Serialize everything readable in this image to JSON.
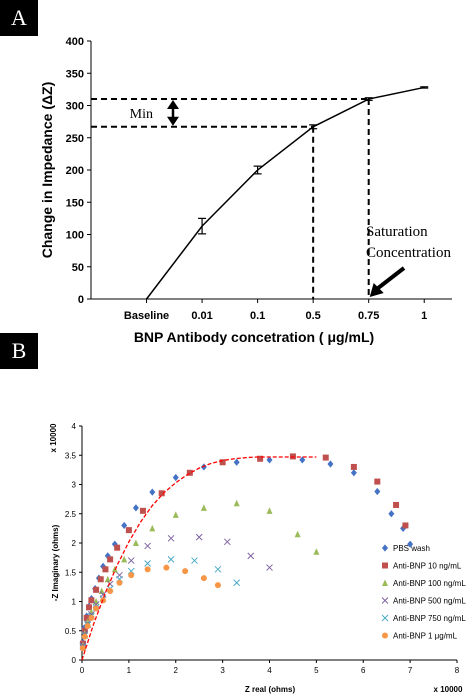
{
  "panel_labels": [
    "A",
    "B"
  ],
  "chart_data": [
    {
      "type": "line",
      "panel": "A",
      "categories": [
        "Baseline",
        "0.01",
        "0.1",
        "0.5",
        "0.75",
        "1"
      ],
      "series": [
        {
          "values": [
            0,
            113,
            200,
            267,
            310,
            328
          ],
          "errors": [
            0,
            12,
            6,
            3,
            2,
            1
          ]
        }
      ],
      "xlabel": "BNP Antibody concetration ( μg/mL)",
      "ylabel": "Change in Impedance (ΔZ)",
      "yticks": [
        0,
        50,
        100,
        150,
        200,
        250,
        300,
        350,
        400
      ],
      "ylim": [
        0,
        400
      ],
      "grid": false,
      "annotations": {
        "min_label": "Min",
        "saturation_line1": "Saturation",
        "saturation_line2": "Concentration"
      }
    },
    {
      "type": "scatter",
      "panel": "B",
      "xlabel": "Z real (ohms)",
      "ylabel": "-Z Imaginary (ohms)",
      "x_multiplier": "x 10000",
      "y_multiplier": "x 10000",
      "xlim": [
        0,
        8
      ],
      "ylim": [
        0,
        4
      ],
      "xticks": [
        "0",
        "1",
        "2",
        "3",
        "4",
        "5",
        "6",
        "7",
        "8"
      ],
      "yticks": [
        "0",
        "0.5",
        "1",
        "1.5",
        "2",
        "2.5",
        "3",
        "3.5",
        "4"
      ],
      "grid": false,
      "legend_position": "right",
      "series": [
        {
          "name": "PBS wash",
          "color": "#4472C4",
          "marker": "diamond",
          "x": [
            0.02,
            0.05,
            0.1,
            0.15,
            0.2,
            0.28,
            0.36,
            0.45,
            0.55,
            0.7,
            0.9,
            1.15,
            1.5,
            2.0,
            2.6,
            3.3,
            4.0,
            4.7,
            5.3,
            5.8,
            6.3,
            6.6,
            6.85,
            7.0
          ],
          "y": [
            0.3,
            0.55,
            0.75,
            0.92,
            1.05,
            1.22,
            1.4,
            1.6,
            1.78,
            1.98,
            2.3,
            2.6,
            2.87,
            3.12,
            3.3,
            3.38,
            3.42,
            3.42,
            3.35,
            3.2,
            2.88,
            2.5,
            2.25,
            1.98
          ]
        },
        {
          "name": "Anti-BNP 10 ng/mL",
          "color": "#C0504D",
          "marker": "square",
          "x": [
            0.02,
            0.06,
            0.1,
            0.15,
            0.2,
            0.3,
            0.4,
            0.5,
            0.6,
            0.75,
            1.0,
            1.3,
            1.7,
            2.3,
            3.0,
            3.8,
            4.5,
            5.2,
            5.8,
            6.3,
            6.7,
            6.9
          ],
          "y": [
            0.28,
            0.5,
            0.72,
            0.9,
            1.02,
            1.2,
            1.38,
            1.55,
            1.72,
            1.92,
            2.22,
            2.55,
            2.85,
            3.2,
            3.38,
            3.44,
            3.48,
            3.46,
            3.3,
            3.05,
            2.65,
            2.3
          ]
        },
        {
          "name": "Anti-BNP 100 ng/mL",
          "color": "#9BBB59",
          "marker": "triangle",
          "x": [
            0.02,
            0.06,
            0.12,
            0.2,
            0.3,
            0.42,
            0.55,
            0.7,
            0.9,
            1.15,
            1.5,
            2.0,
            2.6,
            3.3,
            4.0,
            4.6,
            5.0
          ],
          "y": [
            0.25,
            0.45,
            0.65,
            0.82,
            1.0,
            1.18,
            1.38,
            1.55,
            1.72,
            2.0,
            2.25,
            2.48,
            2.6,
            2.68,
            2.55,
            2.15,
            1.85
          ]
        },
        {
          "name": "Anti-BNP 500 ng/mL",
          "color": "#8064A2",
          "marker": "x",
          "x": [
            0.02,
            0.06,
            0.12,
            0.2,
            0.3,
            0.45,
            0.6,
            0.8,
            1.05,
            1.4,
            1.9,
            2.5,
            3.1,
            3.6,
            4.0
          ],
          "y": [
            0.25,
            0.45,
            0.62,
            0.78,
            0.95,
            1.12,
            1.3,
            1.45,
            1.7,
            1.95,
            2.08,
            2.1,
            2.02,
            1.78,
            1.58
          ]
        },
        {
          "name": "Anti-BNP 750 ng/mL",
          "color": "#4BACC6",
          "marker": "x",
          "x": [
            0.02,
            0.06,
            0.12,
            0.2,
            0.3,
            0.45,
            0.6,
            0.8,
            1.05,
            1.4,
            1.9,
            2.4,
            2.9,
            3.3
          ],
          "y": [
            0.22,
            0.42,
            0.6,
            0.75,
            0.9,
            1.05,
            1.22,
            1.38,
            1.52,
            1.65,
            1.72,
            1.7,
            1.55,
            1.32
          ]
        },
        {
          "name": "Anti-BNP 1 μg/mL",
          "color": "#F79646",
          "marker": "circle",
          "x": [
            0.02,
            0.06,
            0.12,
            0.2,
            0.3,
            0.45,
            0.6,
            0.8,
            1.05,
            1.4,
            1.8,
            2.2,
            2.6,
            2.9
          ],
          "y": [
            0.2,
            0.4,
            0.58,
            0.72,
            0.88,
            1.02,
            1.18,
            1.32,
            1.45,
            1.55,
            1.58,
            1.52,
            1.4,
            1.28
          ]
        }
      ],
      "fit_curve": {
        "color": "#FF0000",
        "x": [
          0,
          0.25,
          0.5,
          0.75,
          1.0,
          1.25,
          1.5,
          1.75,
          2.0,
          2.25,
          2.5,
          2.75,
          3.0,
          3.25,
          3.5,
          3.75,
          4.0,
          4.25,
          4.5,
          4.75,
          5.0
        ],
        "y": [
          0,
          0.62,
          1.15,
          1.62,
          2.02,
          2.36,
          2.64,
          2.86,
          3.03,
          3.17,
          3.28,
          3.36,
          3.41,
          3.44,
          3.46,
          3.47,
          3.47,
          3.47,
          3.47,
          3.47,
          3.47
        ]
      }
    }
  ]
}
